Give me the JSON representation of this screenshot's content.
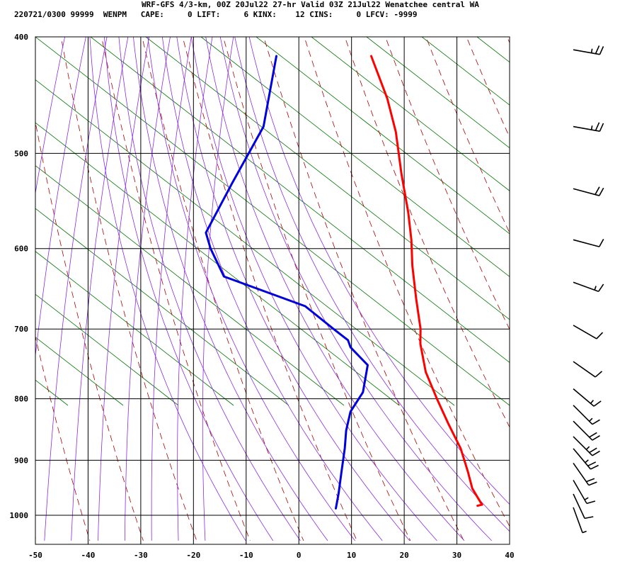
{
  "header": {
    "line1": "WRF-GFS 4/3-km, 00Z 20Jul22 27-hr Valid 03Z 21Jul22 Wenatchee central WA",
    "line2": "220721/0300 99999  WENPM   CAPE:     0 LIFT:     6 KINX:    12 CINS:     0 LFCV: -9999"
  },
  "chart_data": {
    "type": "skew-t",
    "title": "WRF-GFS 4/3-km, 00Z 20Jul22 27-hr Valid 03Z 21Jul22 Wenatchee central WA",
    "xlabel": "",
    "ylabel": "",
    "xlim": [
      -50,
      40
    ],
    "x_ticks": [
      -50,
      -40,
      -30,
      -20,
      -10,
      0,
      10,
      20,
      30,
      40
    ],
    "pressure_ticks": [
      400,
      500,
      600,
      700,
      800,
      900,
      1000
    ],
    "pressure_range_hpa": [
      400,
      1050
    ],
    "grid": true,
    "colors": {
      "temperature": "#ff0000",
      "dewpoint": "#0000dd",
      "dry_adiabat": "#aa0000",
      "moist_adiabat": "#8a2be2",
      "mixing_ratio": "#007700",
      "grid": "#000000",
      "barbs": "#000000"
    },
    "series": [
      {
        "name": "Temperature",
        "points": [
          {
            "p": 415,
            "t": -20.5
          },
          {
            "p": 450,
            "t": -14.5
          },
          {
            "p": 480,
            "t": -10.5
          },
          {
            "p": 520,
            "t": -6.5
          },
          {
            "p": 560,
            "t": -2.5
          },
          {
            "p": 590,
            "t": 0.0
          },
          {
            "p": 620,
            "t": 2.0
          },
          {
            "p": 660,
            "t": 5.0
          },
          {
            "p": 700,
            "t": 8.0
          },
          {
            "p": 720,
            "t": 9.0
          },
          {
            "p": 760,
            "t": 12.0
          },
          {
            "p": 800,
            "t": 16.0
          },
          {
            "p": 840,
            "t": 20.0
          },
          {
            "p": 880,
            "t": 24.0
          },
          {
            "p": 920,
            "t": 27.0
          },
          {
            "p": 950,
            "t": 29.0
          },
          {
            "p": 965,
            "t": 30.5
          },
          {
            "p": 980,
            "t": 32.0
          },
          {
            "p": 982,
            "t": 31.2
          }
        ]
      },
      {
        "name": "Dewpoint",
        "points": [
          {
            "p": 415,
            "t": -38.5
          },
          {
            "p": 475,
            "t": -36.0
          },
          {
            "p": 530,
            "t": -38.0
          },
          {
            "p": 582,
            "t": -39.5
          },
          {
            "p": 600,
            "t": -37.5
          },
          {
            "p": 633,
            "t": -33.0
          },
          {
            "p": 670,
            "t": -15.5
          },
          {
            "p": 700,
            "t": -8.5
          },
          {
            "p": 715,
            "t": -5.0
          },
          {
            "p": 725,
            "t": -4.0
          },
          {
            "p": 750,
            "t": 0.5
          },
          {
            "p": 790,
            "t": 1.5
          },
          {
            "p": 820,
            "t": 0.5
          },
          {
            "p": 850,
            "t": 1.0
          },
          {
            "p": 880,
            "t": 2.0
          },
          {
            "p": 920,
            "t": 3.0
          },
          {
            "p": 960,
            "t": 4.0
          },
          {
            "p": 987,
            "t": 4.5
          }
        ]
      }
    ],
    "wind_barbs": [
      {
        "p": 410,
        "dir": 260,
        "kt": 25
      },
      {
        "p": 475,
        "dir": 260,
        "kt": 25
      },
      {
        "p": 535,
        "dir": 255,
        "kt": 20
      },
      {
        "p": 590,
        "dir": 255,
        "kt": 10
      },
      {
        "p": 640,
        "dir": 250,
        "kt": 15
      },
      {
        "p": 695,
        "dir": 240,
        "kt": 10
      },
      {
        "p": 745,
        "dir": 235,
        "kt": 10
      },
      {
        "p": 785,
        "dir": 230,
        "kt": 15
      },
      {
        "p": 810,
        "dir": 225,
        "kt": 15
      },
      {
        "p": 835,
        "dir": 225,
        "kt": 20
      },
      {
        "p": 860,
        "dir": 225,
        "kt": 25
      },
      {
        "p": 880,
        "dir": 220,
        "kt": 25
      },
      {
        "p": 905,
        "dir": 215,
        "kt": 20
      },
      {
        "p": 935,
        "dir": 210,
        "kt": 15
      },
      {
        "p": 960,
        "dir": 205,
        "kt": 10
      },
      {
        "p": 985,
        "dir": 200,
        "kt": 5
      }
    ]
  }
}
